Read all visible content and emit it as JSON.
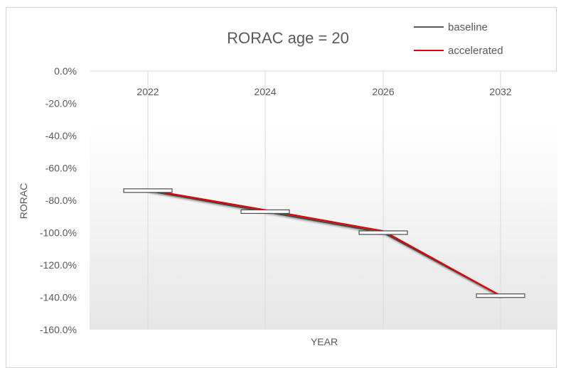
{
  "chart_data": {
    "type": "line",
    "title": "RORAC age = 20",
    "xlabel": "YEAR",
    "ylabel": "RORAC",
    "categories": [
      "2022",
      "2024",
      "2026",
      "2032"
    ],
    "x_axis_position": "top",
    "ylim": [
      -160,
      0
    ],
    "y_ticks": [
      0,
      -20,
      -40,
      -60,
      -80,
      -100,
      -120,
      -140,
      -160
    ],
    "y_tick_labels": [
      "0.0%",
      "-20.0%",
      "-40.0%",
      "-60.0%",
      "-80.0%",
      "-100.0%",
      "-120.0%",
      "-140.0%",
      "-160.0%"
    ],
    "series": [
      {
        "name": "baseline",
        "color": "#595959",
        "values": [
          -74,
          -87,
          -100,
          -139
        ]
      },
      {
        "name": "accelerated",
        "color": "#e00000",
        "values": [
          -73.5,
          -86,
          -99,
          -139
        ]
      }
    ],
    "legend_position": "top-right",
    "vertical_gridlines": true,
    "background": "gradient white-to-light-gray"
  }
}
